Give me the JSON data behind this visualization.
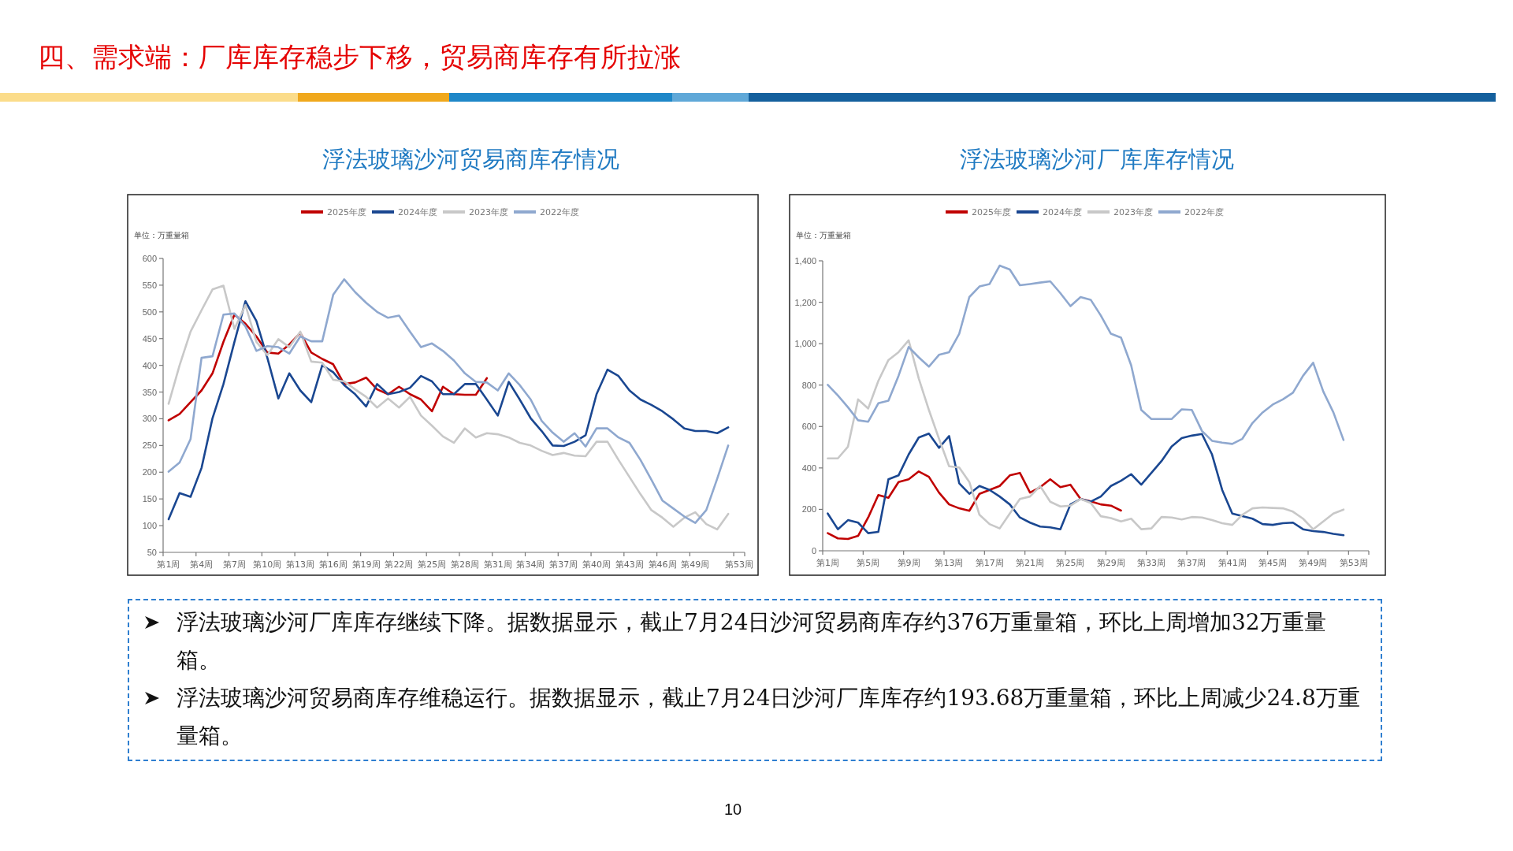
{
  "chart_data": [
    {
      "type": "other",
      "title": "四、需求端：厂库库存稳步下移，贸易商库存有所拉涨"
    },
    {
      "type": "line",
      "title": "浮法玻璃沙河贸易商库存情况",
      "ylabel": "单位：万重量箱",
      "legend": "top",
      "categories": [
        "第1周",
        null,
        null,
        "第4周",
        null,
        null,
        "第7周",
        null,
        null,
        "第10周",
        null,
        null,
        "第13周",
        null,
        null,
        "第16周",
        null,
        null,
        "第19周",
        null,
        null,
        "第22周",
        null,
        null,
        "第25周",
        null,
        null,
        "第28周",
        null,
        null,
        "第31周",
        null,
        null,
        "第34周",
        null,
        null,
        "第37周",
        null,
        null,
        "第40周",
        null,
        null,
        "第43周",
        null,
        null,
        "第46周",
        null,
        null,
        "第49周",
        null,
        null,
        null,
        "第53周"
      ],
      "ylim": [
        50,
        600
      ],
      "yticks": [
        50,
        100,
        150,
        200,
        250,
        300,
        350,
        400,
        450,
        500,
        550,
        600
      ],
      "series": [
        {
          "name": "2025年度",
          "color": "#c00000",
          "values": [
            297,
            309,
            331,
            353,
            385,
            444,
            495,
            478,
            454,
            424,
            422,
            439,
            461,
            424,
            412,
            402,
            365,
            368,
            377,
            355,
            346,
            360,
            346,
            336,
            314,
            360,
            346,
            345,
            345,
            376,
            null,
            null,
            null,
            null,
            null,
            null,
            null,
            null,
            null,
            null,
            null,
            null,
            null,
            null,
            null,
            null,
            null,
            null,
            null,
            null,
            null,
            null,
            null
          ]
        },
        {
          "name": "2024年度",
          "color": "#1a4791",
          "values": [
            112,
            161,
            154,
            208,
            301,
            365,
            444,
            520,
            483,
            414,
            338,
            385,
            353,
            331,
            400,
            387,
            363,
            346,
            323,
            365,
            346,
            350,
            358,
            380,
            370,
            346,
            346,
            365,
            365,
            336,
            306,
            369,
            336,
            301,
            277,
            250,
            249,
            257,
            269,
            346,
            392,
            380,
            353,
            336,
            326,
            314,
            299,
            282,
            277,
            277,
            273,
            284,
            null
          ]
        },
        {
          "name": "2023年度",
          "color": "#c8c8c8",
          "values": [
            328,
            400,
            463,
            503,
            542,
            549,
            468,
            513,
            444,
            419,
            449,
            434,
            463,
            407,
            405,
            373,
            370,
            355,
            341,
            321,
            338,
            321,
            341,
            306,
            287,
            267,
            255,
            282,
            265,
            273,
            271,
            265,
            255,
            250,
            240,
            232,
            236,
            231,
            230,
            257,
            257,
            223,
            191,
            159,
            129,
            115,
            98,
            115,
            125,
            103,
            93,
            122,
            null
          ]
        },
        {
          "name": "2022年度",
          "color": "#8fa8cf",
          "values": [
            201,
            218,
            262,
            414,
            417,
            495,
            497,
            473,
            427,
            436,
            434,
            422,
            454,
            445,
            445,
            532,
            561,
            537,
            517,
            500,
            489,
            493,
            463,
            434,
            441,
            427,
            409,
            385,
            369,
            368,
            353,
            385,
            363,
            336,
            296,
            274,
            257,
            273,
            248,
            282,
            282,
            265,
            255,
            223,
            186,
            147,
            132,
            117,
            105,
            129,
            188,
            250,
            null
          ]
        }
      ]
    },
    {
      "type": "line",
      "title": "浮法玻璃沙河厂库库存情况",
      "ylabel": "单位：万重量箱",
      "legend": "top",
      "categories": [
        "第1周",
        null,
        null,
        null,
        "第5周",
        null,
        null,
        null,
        "第9周",
        null,
        null,
        null,
        "第13周",
        null,
        null,
        null,
        "第17周",
        null,
        null,
        null,
        "第21周",
        null,
        null,
        null,
        "第25周",
        null,
        null,
        null,
        "第29周",
        null,
        null,
        null,
        "第33周",
        null,
        null,
        null,
        "第37周",
        null,
        null,
        null,
        "第41周",
        null,
        null,
        null,
        "第45周",
        null,
        null,
        null,
        "第49周",
        null,
        null,
        null,
        "第53周",
        null
      ],
      "ylim": [
        0,
        1400
      ],
      "yticks": [
        0,
        200,
        400,
        600,
        800,
        {
          "value": 1000,
          "label": "1,000"
        },
        {
          "value": 1200,
          "label": "1,200"
        },
        {
          "value": 1400,
          "label": "1,400"
        }
      ],
      "series": [
        {
          "name": "2025年度",
          "color": "#c00000",
          "values": [
            85,
            60,
            57,
            72,
            161,
            269,
            256,
            332,
            345,
            383,
            357,
            281,
            224,
            205,
            193,
            275,
            294,
            313,
            364,
            376,
            281,
            307,
            345,
            307,
            319,
            250,
            239,
            224,
            218,
            194,
            null,
            null,
            null,
            null,
            null,
            null,
            null,
            null,
            null,
            null,
            null,
            null,
            null,
            null,
            null,
            null,
            null,
            null,
            null,
            null,
            null,
            null,
            null,
            null
          ]
        },
        {
          "name": "2024年度",
          "color": "#1a4791",
          "values": [
            180,
            104,
            148,
            136,
            85,
            91,
            345,
            364,
            465,
            547,
            566,
            497,
            554,
            326,
            275,
            313,
            294,
            262,
            224,
            161,
            136,
            117,
            113,
            104,
            224,
            250,
            237,
            262,
            313,
            338,
            370,
            319,
            376,
            433,
            503,
            544,
            556,
            564,
            465,
            294,
            180,
            167,
            155,
            129,
            125,
            133,
            136,
            104,
            95,
            91,
            82,
            75,
            null,
            null
          ]
        },
        {
          "name": "2023年度",
          "color": "#c8c8c8",
          "values": [
            446,
            446,
            503,
            731,
            687,
            820,
            921,
            959,
            1016,
            832,
            680,
            541,
            408,
            402,
            332,
            174,
            129,
            108,
            180,
            250,
            262,
            313,
            237,
            214,
            218,
            250,
            231,
            167,
            158,
            142,
            155,
            104,
            108,
            163,
            161,
            151,
            163,
            161,
            148,
            133,
            125,
            174,
            205,
            209,
            207,
            205,
            189,
            155,
            104,
            142,
            180,
            199,
            null,
            null
          ]
        },
        {
          "name": "2022年度",
          "color": "#8fa8cf",
          "values": [
            801,
            750,
            693,
            630,
            623,
            712,
            725,
            845,
            984,
            934,
            889,
            946,
            959,
            1048,
            1225,
            1276,
            1288,
            1377,
            1358,
            1282,
            1288,
            1295,
            1301,
            1244,
            1181,
            1225,
            1212,
            1136,
            1048,
            1029,
            896,
            680,
            636,
            636,
            636,
            683,
            680,
            579,
            531,
            522,
            516,
            541,
            617,
            668,
            706,
            731,
            763,
            845,
            908,
            769,
            668,
            535,
            null,
            null
          ]
        }
      ]
    },
    {
      "type": "other",
      "annotations": [
        "浮法玻璃沙河厂库库存继续下降。据数据显示，截止7月24日沙河贸易商库存约376万重量箱，环比上周增加32万重量箱。",
        "浮法玻璃沙河贸易商库存维稳运行。据数据显示，截止7月24日沙河厂库库存约193.68万重量箱，环比上周减少24.8万重量箱。",
        "10"
      ]
    }
  ]
}
